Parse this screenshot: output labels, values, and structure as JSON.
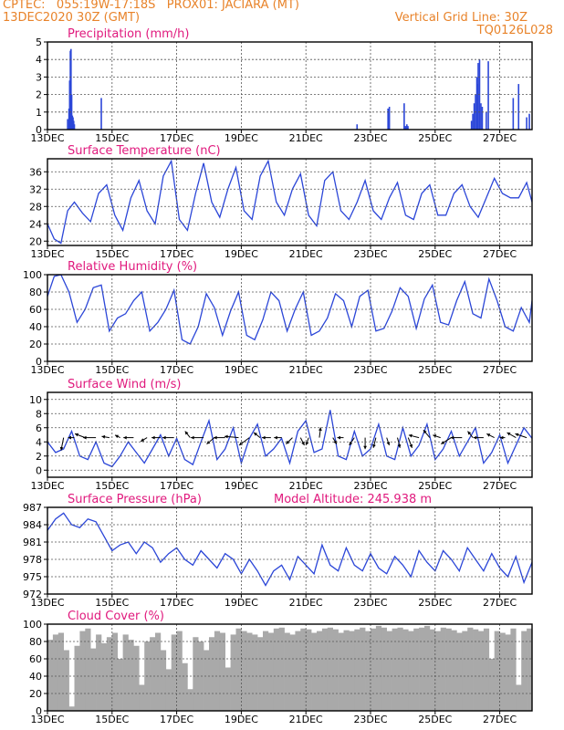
{
  "header": {
    "line1_left": "CPTEC:   055:19W-17:18S   PROX01: JACIARA (MT)",
    "line2_left": "13DEC2020 30Z (GMT)",
    "line2_right": "Vertical Grid Line: 30Z",
    "line3_right": "TQ0126L028"
  },
  "colors": {
    "header": "#e8832a",
    "title": "#e0197d",
    "series": "#2b46d8",
    "cloud": "#a9a9a9",
    "grid": "#555555"
  },
  "chart_data": [
    {
      "id": "precip",
      "type": "bar",
      "title": "Precipitation (mm/h)",
      "ylim": [
        0,
        5
      ],
      "yticks": [
        0,
        1,
        2,
        3,
        4,
        5
      ],
      "xlim": [
        0,
        360
      ],
      "xticks": [
        0,
        48,
        96,
        144,
        192,
        240,
        288,
        336
      ],
      "xticklabels": [
        "13DEC",
        "15DEC",
        "17DEC",
        "19DEC",
        "21DEC",
        "23DEC",
        "25DEC",
        "27DEC"
      ],
      "x": [
        15,
        16,
        16.5,
        17,
        17.5,
        18,
        18.5,
        19,
        19.5,
        20,
        40,
        230,
        253,
        254,
        265,
        266,
        267,
        267.8,
        315,
        316,
        317,
        318,
        319,
        319.5,
        320,
        321,
        322,
        323,
        326,
        327.5,
        346,
        350,
        356,
        358
      ],
      "values": [
        0.6,
        1.2,
        2.8,
        4.5,
        4.6,
        2.0,
        0.8,
        0.7,
        0.5,
        0.3,
        1.8,
        0.3,
        1.2,
        1.3,
        1.5,
        0.2,
        0.3,
        0.2,
        0.5,
        0.9,
        1.5,
        2.0,
        3.0,
        2.6,
        3.8,
        4.0,
        1.5,
        1.3,
        1.0,
        3.9,
        1.8,
        2.6,
        0.7,
        0.9
      ]
    },
    {
      "id": "temp",
      "type": "line",
      "title": "Surface Temperature (nC)",
      "ylim": [
        19,
        39
      ],
      "yticks": [
        20,
        24,
        28,
        32,
        36
      ],
      "xlim": [
        0,
        360
      ],
      "xticks": [
        0,
        48,
        96,
        144,
        192,
        240,
        288,
        336
      ],
      "xticklabels": [
        "13DEC",
        "15DEC",
        "17DEC",
        "19DEC",
        "21DEC",
        "23DEC",
        "25DEC",
        "27DEC"
      ],
      "x": [
        0,
        5,
        10,
        15,
        20,
        26,
        32,
        38,
        44,
        50,
        56,
        62,
        68,
        74,
        80,
        86,
        92,
        98,
        104,
        110,
        116,
        122,
        128,
        134,
        140,
        146,
        152,
        158,
        164,
        170,
        176,
        182,
        188,
        194,
        200,
        206,
        212,
        218,
        224,
        230,
        236,
        242,
        248,
        254,
        260,
        266,
        272,
        278,
        284,
        290,
        296,
        302,
        308,
        314,
        320,
        326,
        332,
        338,
        344,
        350,
        356,
        360
      ],
      "values": [
        24,
        20.5,
        19.5,
        27,
        29,
        26.5,
        24.5,
        31,
        33,
        26,
        22.5,
        30,
        34,
        27,
        24,
        35,
        38.5,
        25,
        22.5,
        31,
        38,
        29,
        25.5,
        32,
        37,
        27,
        25,
        35,
        38.5,
        29,
        26,
        32,
        35.5,
        26,
        23.5,
        34,
        36,
        27,
        25,
        29,
        34,
        27,
        25,
        30,
        33.5,
        26,
        25,
        31,
        33,
        26,
        26,
        31,
        33,
        28,
        25.5,
        30,
        34.5,
        31,
        30,
        30,
        33.5,
        29
      ]
    },
    {
      "id": "rh",
      "type": "line",
      "title": "Relative Humidity (%)",
      "ylim": [
        0,
        100
      ],
      "yticks": [
        0,
        20,
        40,
        60,
        80,
        100
      ],
      "xlim": [
        0,
        360
      ],
      "xticks": [
        0,
        48,
        96,
        144,
        192,
        240,
        288,
        336
      ],
      "xticklabels": [
        "13DEC",
        "15DEC",
        "17DEC",
        "19DEC",
        "21DEC",
        "23DEC",
        "25DEC",
        "27DEC"
      ],
      "x": [
        0,
        5,
        10,
        16,
        22,
        28,
        34,
        40,
        46,
        52,
        58,
        64,
        70,
        76,
        82,
        88,
        94,
        100,
        106,
        112,
        118,
        124,
        130,
        136,
        142,
        148,
        154,
        160,
        166,
        172,
        178,
        184,
        190,
        196,
        202,
        208,
        214,
        220,
        226,
        232,
        238,
        244,
        250,
        256,
        262,
        268,
        274,
        280,
        286,
        292,
        298,
        304,
        310,
        316,
        322,
        328,
        334,
        340,
        346,
        352,
        358,
        360
      ],
      "values": [
        75,
        98,
        100,
        80,
        45,
        60,
        85,
        88,
        35,
        50,
        55,
        70,
        80,
        35,
        45,
        60,
        82,
        25,
        20,
        40,
        78,
        62,
        30,
        58,
        80,
        30,
        25,
        48,
        80,
        70,
        35,
        60,
        80,
        30,
        35,
        50,
        78,
        70,
        40,
        75,
        82,
        35,
        38,
        58,
        85,
        75,
        38,
        72,
        88,
        45,
        42,
        70,
        92,
        55,
        50,
        95,
        70,
        40,
        35,
        62,
        45,
        70
      ]
    },
    {
      "id": "wind",
      "type": "line",
      "title": "Surface Wind (m/s)",
      "ylim": [
        -1,
        11
      ],
      "yticks": [
        0,
        2,
        4,
        6,
        8,
        10
      ],
      "xlim": [
        0,
        360
      ],
      "xticks": [
        0,
        48,
        96,
        144,
        192,
        240,
        288,
        336
      ],
      "xticklabels": [
        "13DEC",
        "15DEC",
        "17DEC",
        "19DEC",
        "21DEC",
        "23DEC",
        "25DEC",
        "27DEC"
      ],
      "x": [
        0,
        6,
        12,
        18,
        24,
        30,
        36,
        42,
        48,
        54,
        60,
        66,
        72,
        78,
        84,
        90,
        96,
        102,
        108,
        114,
        120,
        126,
        132,
        138,
        144,
        150,
        156,
        162,
        168,
        174,
        180,
        186,
        192,
        198,
        204,
        210,
        216,
        222,
        228,
        234,
        240,
        246,
        252,
        258,
        264,
        270,
        276,
        282,
        288,
        294,
        300,
        306,
        312,
        318,
        324,
        330,
        336,
        342,
        348,
        354,
        360
      ],
      "values": [
        4,
        2.5,
        3,
        5.5,
        2,
        1.5,
        4,
        1,
        0.5,
        2,
        4,
        2.5,
        1,
        3,
        5,
        2,
        4.5,
        1.5,
        0.8,
        4,
        7,
        1.5,
        3,
        6,
        1,
        4.5,
        6.5,
        2,
        3,
        4.5,
        1,
        5.5,
        7,
        2.5,
        3,
        8.5,
        2,
        1.5,
        5.5,
        2,
        3,
        6.5,
        2,
        1.5,
        6,
        2,
        3.5,
        6.5,
        1.5,
        3,
        5.5,
        2,
        4,
        6,
        1,
        2.5,
        5,
        1,
        3.5,
        6,
        4.5
      ],
      "arrows_x": [
        12,
        20,
        28,
        36,
        46,
        54,
        64,
        74,
        84,
        94,
        106,
        116,
        124,
        132,
        142,
        150,
        158,
        166,
        174,
        182,
        188,
        194,
        202,
        212,
        220,
        228,
        236,
        244,
        252,
        260,
        268,
        276,
        284,
        292,
        300,
        308,
        316,
        324,
        332,
        340,
        348,
        356
      ],
      "arrows_u": [
        -0.2,
        -0.5,
        -0.8,
        -1.0,
        -0.6,
        -0.4,
        -0.8,
        -0.5,
        -0.7,
        -0.9,
        -0.4,
        -1.0,
        -0.6,
        -0.9,
        -1.1,
        -0.8,
        -0.5,
        -0.7,
        -0.6,
        -0.5,
        0.3,
        -0.2,
        0.1,
        0.3,
        -0.5,
        -0.4,
        0.0,
        -0.2,
        0.2,
        0.2,
        0.3,
        -0.8,
        -0.5,
        -0.6,
        -0.8,
        -0.9,
        -0.4,
        -0.8,
        -0.6,
        -0.4,
        -0.7,
        -0.9
      ],
      "arrows_v": [
        -1.0,
        0.0,
        0.3,
        0.0,
        0.1,
        0.2,
        0.0,
        -0.3,
        0.0,
        0.0,
        0.5,
        0.0,
        -0.5,
        0.0,
        0.1,
        -0.6,
        0.4,
        0.0,
        0.0,
        -0.5,
        -0.6,
        -0.6,
        0.8,
        -0.5,
        0.0,
        -0.6,
        -0.9,
        -0.8,
        -0.6,
        -0.8,
        -0.8,
        0.2,
        0.6,
        0.2,
        -0.5,
        0.0,
        0.5,
        0.0,
        0.3,
        0.0,
        0.4,
        0.3
      ]
    },
    {
      "id": "pres",
      "type": "line",
      "title": "Surface Pressure (hPa)",
      "annotation": "Model Altitude: 245.938  m",
      "ylim": [
        972,
        987
      ],
      "yticks": [
        972,
        975,
        978,
        981,
        984,
        987
      ],
      "xlim": [
        0,
        360
      ],
      "xticks": [
        0,
        48,
        96,
        144,
        192,
        240,
        288,
        336
      ],
      "xticklabels": [
        "13DEC",
        "15DEC",
        "17DEC",
        "19DEC",
        "21DEC",
        "23DEC",
        "25DEC",
        "27DEC"
      ],
      "x": [
        0,
        6,
        12,
        18,
        24,
        30,
        36,
        42,
        48,
        54,
        60,
        66,
        72,
        78,
        84,
        90,
        96,
        102,
        108,
        114,
        120,
        126,
        132,
        138,
        144,
        150,
        156,
        162,
        168,
        174,
        180,
        186,
        192,
        198,
        204,
        210,
        216,
        222,
        228,
        234,
        240,
        246,
        252,
        258,
        264,
        270,
        276,
        282,
        288,
        294,
        300,
        306,
        312,
        318,
        324,
        330,
        336,
        342,
        348,
        354,
        360
      ],
      "values": [
        983,
        985,
        986,
        984,
        983.5,
        985,
        984.5,
        982,
        979.5,
        980.5,
        981,
        979,
        981,
        980,
        977.5,
        979,
        980,
        978,
        977,
        979.5,
        978,
        976.5,
        979,
        978,
        975.5,
        978,
        976,
        973.5,
        976,
        977,
        974.5,
        978.5,
        977,
        975.5,
        980.5,
        977,
        976,
        980,
        977,
        976,
        979,
        976.5,
        975.5,
        978.5,
        977,
        975,
        979.5,
        977.5,
        976,
        979.5,
        978,
        976,
        980,
        978,
        976,
        979,
        976.5,
        975,
        978.5,
        974,
        977.5
      ]
    },
    {
      "id": "cloud",
      "type": "bar",
      "title": "Cloud Cover (%)",
      "ylim": [
        0,
        100
      ],
      "yticks": [
        0,
        20,
        40,
        60,
        80,
        100
      ],
      "xlim": [
        0,
        360
      ],
      "xticks": [
        0,
        48,
        96,
        144,
        192,
        240,
        288,
        336
      ],
      "xticklabels": [
        "13DEC",
        "15DEC",
        "17DEC",
        "19DEC",
        "21DEC",
        "23DEC",
        "25DEC",
        "27DEC"
      ],
      "x": [
        2,
        6,
        10,
        14,
        18,
        22,
        26,
        30,
        34,
        38,
        42,
        46,
        50,
        54,
        58,
        62,
        66,
        70,
        74,
        78,
        82,
        86,
        90,
        94,
        98,
        102,
        106,
        110,
        114,
        118,
        122,
        126,
        130,
        134,
        138,
        142,
        146,
        150,
        154,
        158,
        162,
        166,
        170,
        174,
        178,
        182,
        186,
        190,
        194,
        198,
        202,
        206,
        210,
        214,
        218,
        222,
        226,
        230,
        234,
        238,
        242,
        246,
        250,
        254,
        258,
        262,
        266,
        270,
        274,
        278,
        282,
        286,
        290,
        294,
        298,
        302,
        306,
        310,
        314,
        318,
        322,
        326,
        330,
        334,
        338,
        342,
        346,
        350,
        354,
        358
      ],
      "values": [
        82,
        88,
        90,
        70,
        5,
        75,
        92,
        95,
        72,
        88,
        78,
        85,
        90,
        60,
        88,
        82,
        75,
        30,
        80,
        85,
        90,
        70,
        48,
        88,
        92,
        55,
        25,
        85,
        80,
        70,
        85,
        92,
        90,
        50,
        88,
        95,
        92,
        90,
        88,
        85,
        92,
        90,
        95,
        96,
        90,
        88,
        92,
        95,
        94,
        90,
        92,
        95,
        96,
        94,
        90,
        93,
        92,
        94,
        96,
        92,
        95,
        98,
        96,
        92,
        95,
        96,
        94,
        92,
        95,
        96,
        98,
        94,
        92,
        96,
        95,
        93,
        90,
        92,
        96,
        94,
        92,
        95,
        60,
        92,
        90,
        88,
        95,
        30,
        92,
        95
      ]
    }
  ]
}
